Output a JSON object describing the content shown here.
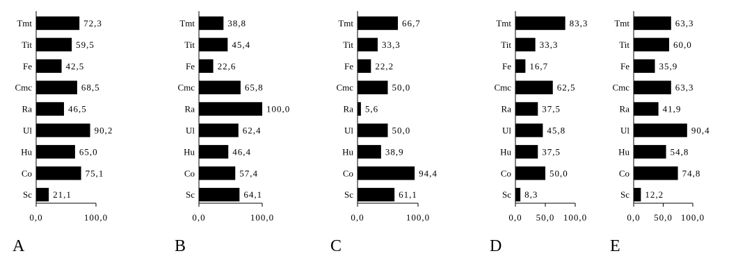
{
  "chart_data": [
    {
      "type": "bar",
      "orientation": "horizontal",
      "panel_label": "A",
      "categories": [
        "Tmt",
        "Tit",
        "Fe",
        "Cmc",
        "Ra",
        "Ul",
        "Hu",
        "Co",
        "Sc"
      ],
      "values": [
        72.3,
        59.5,
        42.5,
        68.5,
        46.5,
        90.2,
        65.0,
        75.1,
        21.1
      ],
      "value_labels": [
        "72,3",
        "59,5",
        "42,5",
        "68,5",
        "46,5",
        "90,2",
        "65,0",
        "75,1",
        "21,1"
      ],
      "xlim": [
        0,
        100
      ],
      "xticks": [
        0,
        100
      ],
      "xtick_labels": [
        "0,0",
        "100,0"
      ]
    },
    {
      "type": "bar",
      "orientation": "horizontal",
      "panel_label": "B",
      "categories": [
        "Tmt",
        "Tit",
        "Fe",
        "Cmc",
        "Ra",
        "Ul",
        "Hu",
        "Co",
        "Sc"
      ],
      "values": [
        38.8,
        45.4,
        22.6,
        65.8,
        100.0,
        62.4,
        46.4,
        57.4,
        64.1
      ],
      "value_labels": [
        "38,8",
        "45,4",
        "22,6",
        "65,8",
        "100,0",
        "62,4",
        "46,4",
        "57,4",
        "64,1"
      ],
      "xlim": [
        0,
        100
      ],
      "xticks": [
        0,
        100
      ],
      "xtick_labels": [
        "0,0",
        "100,0"
      ]
    },
    {
      "type": "bar",
      "orientation": "horizontal",
      "panel_label": "C",
      "categories": [
        "Tmt",
        "Tit",
        "Fe",
        "Cmc",
        "Ra",
        "Ul",
        "Hu",
        "Co",
        "Sc"
      ],
      "values": [
        66.7,
        33.3,
        22.2,
        50.0,
        5.6,
        50.0,
        38.9,
        94.4,
        61.1
      ],
      "value_labels": [
        "66,7",
        "33,3",
        "22,2",
        "50,0",
        "5,6",
        "50,0",
        "38,9",
        "94,4",
        "61,1"
      ],
      "xlim": [
        0,
        100
      ],
      "xticks": [
        0,
        100
      ],
      "xtick_labels": [
        "0,0",
        "100,0"
      ]
    },
    {
      "type": "bar",
      "orientation": "horizontal",
      "panel_label": "D",
      "categories": [
        "Tmt",
        "Tit",
        "Fe",
        "Cmc",
        "Ra",
        "Ul",
        "Hu",
        "Co",
        "Sc"
      ],
      "values": [
        83.3,
        33.3,
        16.7,
        62.5,
        37.5,
        45.8,
        37.5,
        50.0,
        8.3
      ],
      "value_labels": [
        "83,3",
        "33,3",
        "16,7",
        "62,5",
        "37,5",
        "45,8",
        "37,5",
        "50,0",
        "8,3"
      ],
      "xlim": [
        0,
        100
      ],
      "xticks": [
        0,
        50,
        100
      ],
      "xtick_labels": [
        "0,0",
        "50,0",
        "100,0"
      ]
    },
    {
      "type": "bar",
      "orientation": "horizontal",
      "panel_label": "E",
      "categories": [
        "Tmt",
        "Tit",
        "Fe",
        "Cmc",
        "Ra",
        "Ul",
        "Hu",
        "Co",
        "Sc"
      ],
      "values": [
        63.3,
        60.0,
        35.9,
        63.3,
        41.9,
        90.4,
        54.8,
        74.8,
        12.2
      ],
      "value_labels": [
        "63,3",
        "60,0",
        "35,9",
        "63,3",
        "41,9",
        "90,4",
        "54,8",
        "74,8",
        "12,2"
      ],
      "xlim": [
        0,
        100
      ],
      "xticks": [
        0,
        50,
        100
      ],
      "xtick_labels": [
        "0,0",
        "50,0",
        "100,0"
      ]
    }
  ]
}
